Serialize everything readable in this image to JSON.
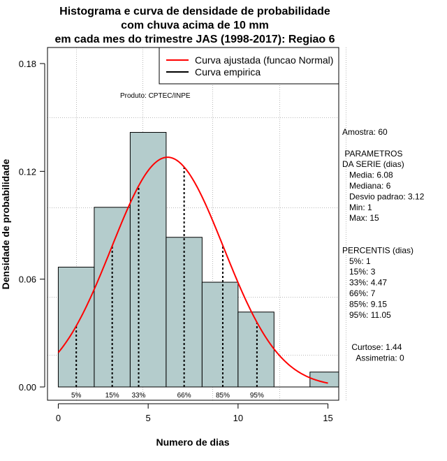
{
  "chart_data": {
    "type": "bar",
    "title": [
      "Histograma e curva de densidade de probabilidade",
      "com chuva acima de 10 mm",
      "em cada mes do trimestre JAS (1998-2017): Regiao 6"
    ],
    "xlabel": "Numero de dias",
    "ylabel": "Densidade de probabilidade",
    "xlim": [
      -0.6,
      15.6
    ],
    "ylim": [
      0,
      0.18
    ],
    "x_ticks": [
      0,
      5,
      10,
      15
    ],
    "y_ticks": [
      "0.00",
      "0.06",
      "0.12",
      "0.18"
    ],
    "grid": true,
    "bins": [
      {
        "from": 0,
        "to": 2,
        "density": 0.0667
      },
      {
        "from": 2,
        "to": 4,
        "density": 0.1
      },
      {
        "from": 4,
        "to": 6,
        "density": 0.1417
      },
      {
        "from": 6,
        "to": 8,
        "density": 0.0833
      },
      {
        "from": 8,
        "to": 10,
        "density": 0.0583
      },
      {
        "from": 10,
        "to": 12,
        "density": 0.0417
      },
      {
        "from": 12,
        "to": 14,
        "density": 0
      },
      {
        "from": 14,
        "to": 16,
        "density": 0.0083
      }
    ],
    "bar_color": "#b4cccc",
    "normal_fit": {
      "mean": 6.08,
      "sd": 3.12,
      "from": 0,
      "to": 15,
      "color": "#ff0000"
    },
    "percentile_markers": [
      {
        "label": "5%",
        "x": 1
      },
      {
        "label": "15%",
        "x": 3
      },
      {
        "label": "33%",
        "x": 4.47
      },
      {
        "label": "66%",
        "x": 7
      },
      {
        "label": "85%",
        "x": 9.15
      },
      {
        "label": "95%",
        "x": 11.05
      }
    ],
    "legend": {
      "position": "top-right",
      "items": [
        {
          "label": "Curva ajustada (funcao Normal)",
          "color": "#ff0000"
        },
        {
          "label": "Curva empirica",
          "color": "#000000"
        }
      ]
    },
    "annotation": "Produto: CPTEC/INPE"
  },
  "stats_panel": {
    "lines": [
      "Amostra: 60",
      "",
      " PARAMETROS",
      "DA SERIE (dias)",
      "   Media: 6.08",
      "   Mediana: 6",
      "   Desvio padrao: 3.12",
      "   Min: 1",
      "   Max: 15",
      "",
      "",
      "PERCENTIS (dias)",
      "   5%: 1",
      "   15%: 3",
      "   33%: 4.47",
      "   66%: 7",
      "   85%: 9.15",
      "   95%: 11.05",
      "",
      "",
      "    Curtose: 1.44",
      "      Assimetria: 0"
    ]
  }
}
